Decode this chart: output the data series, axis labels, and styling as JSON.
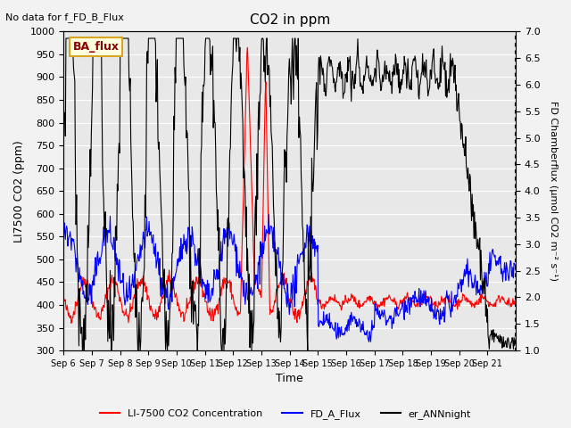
{
  "title": "CO2 in ppm",
  "top_left_text": "No data for f_FD_B_Flux",
  "ylabel_left": "LI7500 CO2 (ppm)",
  "ylabel_right": "FD Chamberflux (umol CO2 m-2 s-1)",
  "xlabel": "Time",
  "ylim_left": [
    300,
    1000
  ],
  "ylim_right": [
    1.0,
    7.0
  ],
  "yticks_left": [
    300,
    350,
    400,
    450,
    500,
    550,
    600,
    650,
    700,
    750,
    800,
    850,
    900,
    950,
    1000
  ],
  "yticks_right": [
    1.0,
    1.5,
    2.0,
    2.5,
    3.0,
    3.5,
    4.0,
    4.5,
    5.0,
    5.5,
    6.0,
    6.5,
    7.0
  ],
  "xtick_labels": [
    "Sep 6",
    "Sep 7",
    "Sep 8",
    "Sep 9",
    "Sep 10",
    "Sep 11",
    "Sep 12",
    "Sep 13",
    "Sep 14",
    "Sep 15",
    "Sep 16",
    "Sep 17",
    "Sep 18",
    "Sep 19",
    "Sep 20",
    "Sep 21"
  ],
  "ba_flux_label": "BA_flux",
  "legend_entries": [
    "LI-7500 CO2 Concentration",
    "FD_A_Flux",
    "er_ANNnight"
  ],
  "legend_colors": [
    "red",
    "blue",
    "black"
  ],
  "bg_color": "#e8e8e8",
  "fig_bg": "#f2f2f2"
}
